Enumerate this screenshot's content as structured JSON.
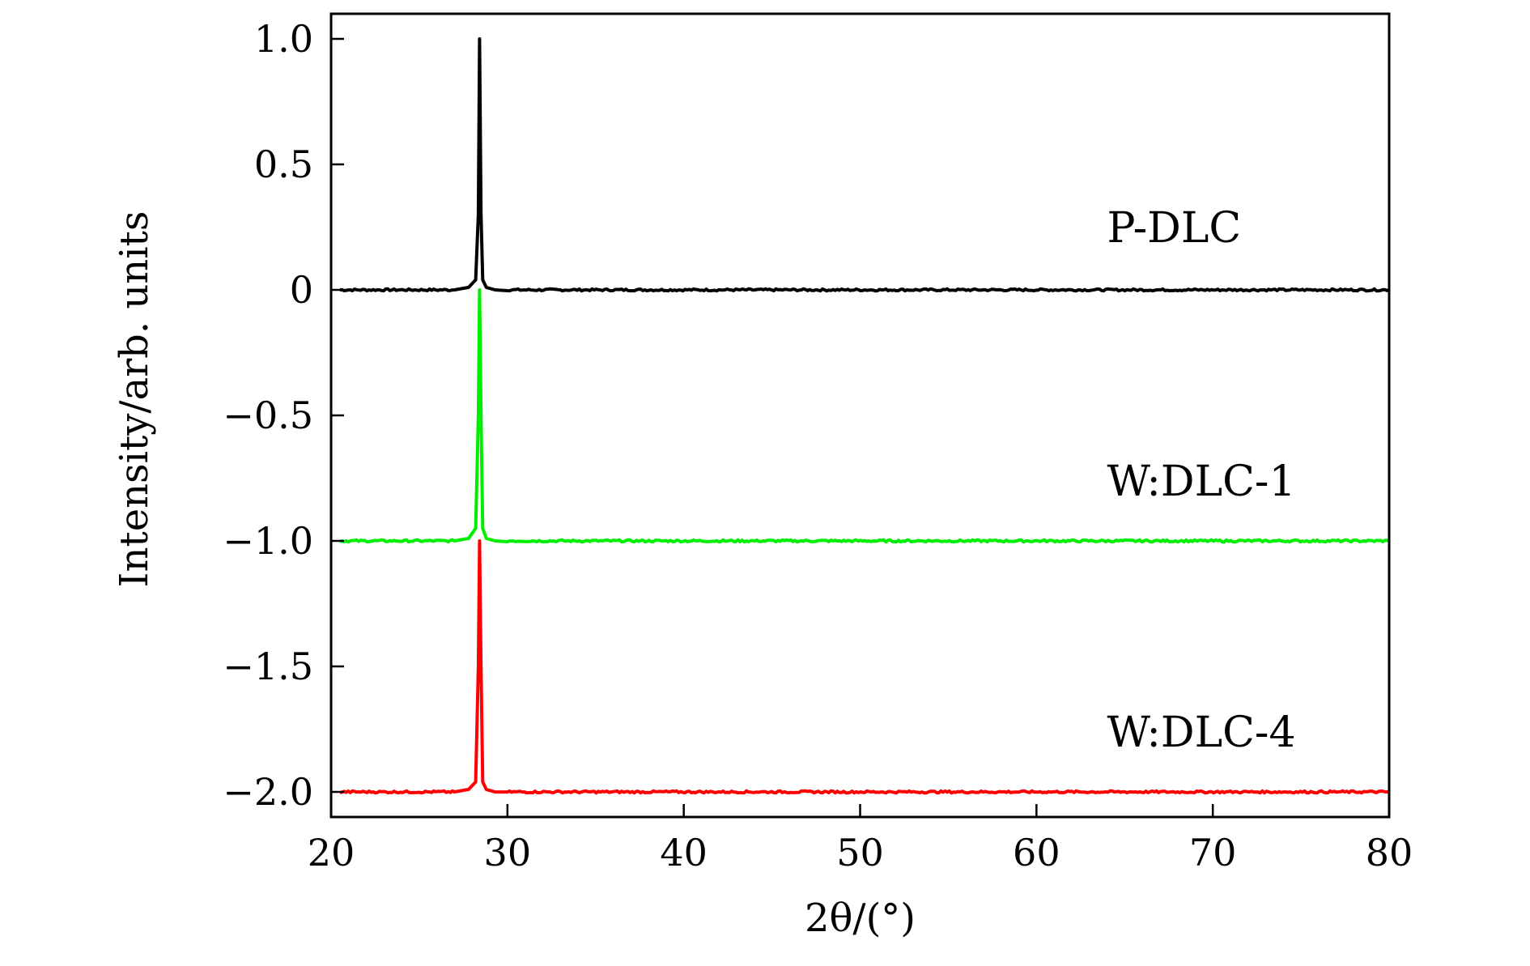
{
  "chart_data": {
    "type": "line",
    "title": "",
    "xlabel": "2θ/(°)",
    "ylabel": "Intensity/arb. units",
    "xlim": [
      20,
      80
    ],
    "ylim": [
      -2.1,
      1.1
    ],
    "x_ticks": [
      20,
      30,
      40,
      50,
      60,
      70,
      80
    ],
    "x_tick_labels": [
      "20",
      "30",
      "40",
      "50",
      "60",
      "70",
      "80"
    ],
    "y_ticks": [
      1.0,
      0.5,
      0,
      -0.5,
      -1.0,
      -1.5,
      -2.0
    ],
    "y_tick_labels": [
      "1.0",
      "0.5",
      "0",
      "−0.5",
      "−1.0",
      "−1.5",
      "−2.0"
    ],
    "grid": false,
    "legend": "none",
    "series": [
      {
        "name": "P-DLC",
        "color": "#000000",
        "x": [
          20.5,
          27.0,
          27.8,
          28.2,
          28.35,
          28.42,
          28.5,
          28.6,
          28.8,
          29.3,
          30.0,
          80.0
        ],
        "y": [
          0,
          0,
          0.01,
          0.04,
          0.3,
          1.0,
          0.3,
          0.04,
          0.01,
          0,
          0,
          0
        ]
      },
      {
        "name": "W:DLC-1",
        "color": "#00ee00",
        "x": [
          20.5,
          27.0,
          27.8,
          28.2,
          28.35,
          28.42,
          28.5,
          28.6,
          28.8,
          29.3,
          30.0,
          80.0
        ],
        "y": [
          -1.0,
          -1.0,
          -0.99,
          -0.95,
          -0.5,
          0.0,
          -0.5,
          -0.95,
          -0.99,
          -1.0,
          -1.0,
          -1.0
        ]
      },
      {
        "name": "W:DLC-4",
        "color": "#ff0000",
        "x": [
          20.5,
          27.0,
          27.8,
          28.2,
          28.35,
          28.42,
          28.5,
          28.6,
          28.8,
          29.3,
          30.0,
          80.0
        ],
        "y": [
          -2.0,
          -2.0,
          -1.99,
          -1.96,
          -1.5,
          -1.0,
          -1.5,
          -1.96,
          -1.99,
          -2.0,
          -2.0,
          -2.0
        ]
      }
    ],
    "annotations": [
      {
        "text": "P-DLC",
        "x": 64.0,
        "y": 0.19
      },
      {
        "text": "W:DLC-1",
        "x": 64.0,
        "y": -0.82
      },
      {
        "text": "W:DLC-4",
        "x": 64.0,
        "y": -1.82
      }
    ]
  }
}
